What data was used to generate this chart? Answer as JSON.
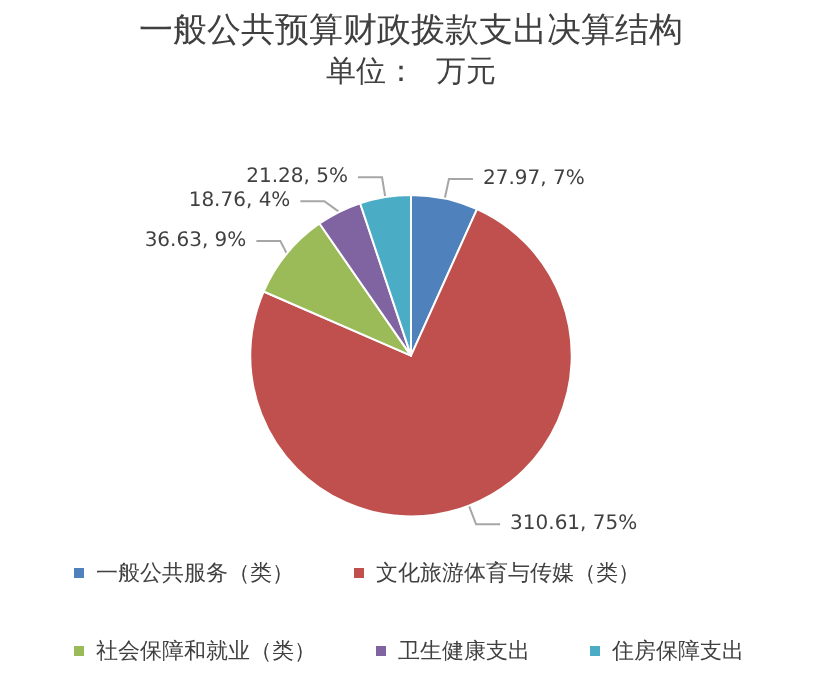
{
  "chart_data": {
    "type": "pie",
    "title": "一般公共预算财政拨款支出决算结构",
    "subtitle": "单位：  万元",
    "categories": [
      "一般公共服务（类）",
      "文化旅游体育与传媒（类）",
      "社会保障和就业（类）",
      "卫生健康支出",
      "住房保障支出"
    ],
    "values": [
      27.97,
      310.61,
      36.63,
      18.76,
      21.28
    ],
    "colors": [
      "#4f81bd",
      "#c0504d",
      "#9bbb59",
      "#8064a2",
      "#4bacc6"
    ],
    "value_labels": [
      "27.97, 7%",
      "310.61, 75%",
      "36.63, 9%",
      "18.76, 4%",
      "21.28, 5%"
    ],
    "legend": "bottom"
  }
}
